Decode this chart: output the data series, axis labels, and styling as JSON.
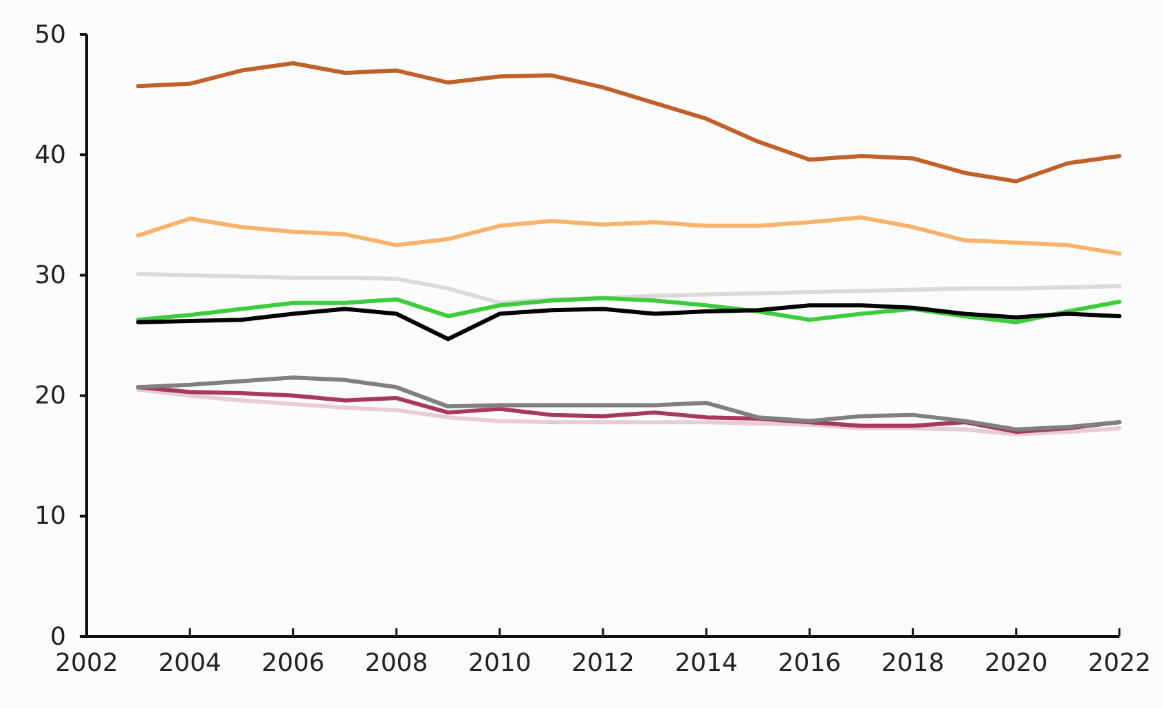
{
  "chart_data": {
    "type": "line",
    "x": [
      2003,
      2004,
      2005,
      2006,
      2007,
      2008,
      2009,
      2010,
      2011,
      2012,
      2013,
      2014,
      2015,
      2016,
      2017,
      2018,
      2019,
      2020,
      2021,
      2022
    ],
    "xlim": [
      2002,
      2022
    ],
    "xticks": [
      2002,
      2004,
      2006,
      2008,
      2010,
      2012,
      2014,
      2016,
      2018,
      2020,
      2022
    ],
    "ylim": [
      0,
      50
    ],
    "yticks": [
      0,
      10,
      20,
      30,
      40,
      50
    ],
    "grid": false,
    "marker": "none",
    "line_style": "solid",
    "series": [
      {
        "color": "#e8ccd4",
        "values": [
          20.5,
          20.0,
          19.6,
          19.3,
          19.0,
          18.8,
          18.2,
          17.9,
          17.8,
          17.8,
          17.8,
          17.8,
          17.7,
          17.6,
          17.3,
          17.3,
          17.2,
          16.8,
          17.0,
          17.3
        ]
      },
      {
        "color": "#dadada",
        "values": [
          30.1,
          30.0,
          29.9,
          29.8,
          29.8,
          29.7,
          28.9,
          27.7,
          28.0,
          28.1,
          28.3,
          28.4,
          28.5,
          28.6,
          28.7,
          28.8,
          28.9,
          28.9,
          29.0,
          29.1
        ]
      },
      {
        "color": "#f7b36b",
        "values": [
          33.3,
          34.7,
          34.0,
          33.6,
          33.4,
          32.5,
          33.0,
          34.1,
          34.5,
          34.2,
          34.4,
          34.1,
          34.1,
          34.4,
          34.8,
          34.0,
          32.9,
          32.7,
          32.5,
          31.8
        ]
      },
      {
        "color": "#c0602a",
        "values": [
          45.7,
          45.9,
          47.0,
          47.6,
          46.8,
          47.0,
          46.0,
          46.5,
          46.6,
          45.6,
          44.3,
          43.0,
          41.1,
          39.6,
          39.9,
          39.7,
          38.5,
          37.8,
          39.3,
          39.9
        ]
      },
      {
        "color": "#a8385f",
        "values": [
          20.7,
          20.3,
          20.2,
          20.0,
          19.6,
          19.8,
          18.6,
          18.9,
          18.4,
          18.3,
          18.6,
          18.2,
          18.1,
          17.8,
          17.5,
          17.5,
          17.8,
          17.0,
          17.3,
          17.8
        ]
      },
      {
        "color": "#808080",
        "values": [
          20.7,
          20.9,
          21.2,
          21.5,
          21.3,
          20.7,
          19.1,
          19.2,
          19.2,
          19.2,
          19.2,
          19.4,
          18.2,
          17.9,
          18.3,
          18.4,
          17.9,
          17.2,
          17.4,
          17.8
        ]
      },
      {
        "color": "#3ccc3c",
        "values": [
          26.3,
          26.7,
          27.2,
          27.7,
          27.7,
          28.0,
          26.6,
          27.5,
          27.9,
          28.1,
          27.9,
          27.5,
          27.0,
          26.3,
          26.8,
          27.2,
          26.6,
          26.1,
          27.0,
          27.8
        ]
      },
      {
        "color": "#000000",
        "values": [
          26.1,
          26.2,
          26.3,
          26.8,
          27.2,
          26.8,
          24.7,
          26.8,
          27.1,
          27.2,
          26.8,
          27.0,
          27.1,
          27.5,
          27.5,
          27.3,
          26.8,
          26.5,
          26.8,
          26.6
        ]
      }
    ]
  }
}
